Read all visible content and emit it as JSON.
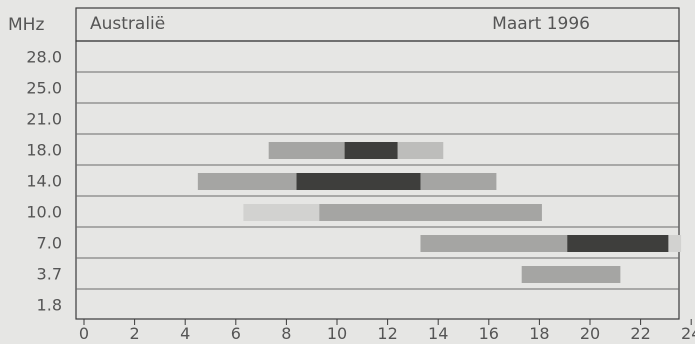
{
  "chart_data": {
    "type": "bar",
    "subtype": "horizontal-range (propagation schedule)",
    "region_label": "Australië",
    "date_label": "Maart 1996",
    "unit_label": "MHz",
    "categories": [
      "28.0",
      "25.0",
      "21.0",
      "18.0",
      "14.0",
      "10.0",
      "7.0",
      "3.7",
      "1.8"
    ],
    "x_ticks": [
      0,
      2,
      4,
      6,
      8,
      10,
      12,
      14,
      16,
      18,
      20,
      22,
      24
    ],
    "xlim": [
      0,
      24
    ],
    "grid": true,
    "colors": {
      "background": "#e6e6e4",
      "frame": "#3a3a3a",
      "row_line": "#6a6a6a",
      "very_light": "#d2d2d0",
      "light": "#bdbdbb",
      "medium": "#a5a5a3",
      "dark": "#3e3e3c"
    },
    "bars": [
      {
        "category": "18.0",
        "start": 7.3,
        "end": 10.3,
        "level": "medium"
      },
      {
        "category": "18.0",
        "start": 10.3,
        "end": 12.4,
        "level": "dark"
      },
      {
        "category": "18.0",
        "start": 12.4,
        "end": 14.2,
        "level": "light"
      },
      {
        "category": "14.0",
        "start": 4.5,
        "end": 8.4,
        "level": "medium"
      },
      {
        "category": "14.0",
        "start": 8.4,
        "end": 13.3,
        "level": "dark"
      },
      {
        "category": "14.0",
        "start": 13.3,
        "end": 16.3,
        "level": "medium"
      },
      {
        "category": "10.0",
        "start": 6.3,
        "end": 9.3,
        "level": "very_light"
      },
      {
        "category": "10.0",
        "start": 9.3,
        "end": 18.1,
        "level": "medium"
      },
      {
        "category": "7.0",
        "start": 13.3,
        "end": 19.1,
        "level": "medium"
      },
      {
        "category": "7.0",
        "start": 19.1,
        "end": 23.1,
        "level": "dark"
      },
      {
        "category": "7.0",
        "start": 23.1,
        "end": 23.6,
        "level": "very_light"
      },
      {
        "category": "3.7",
        "start": 17.3,
        "end": 21.2,
        "level": "medium"
      }
    ]
  }
}
